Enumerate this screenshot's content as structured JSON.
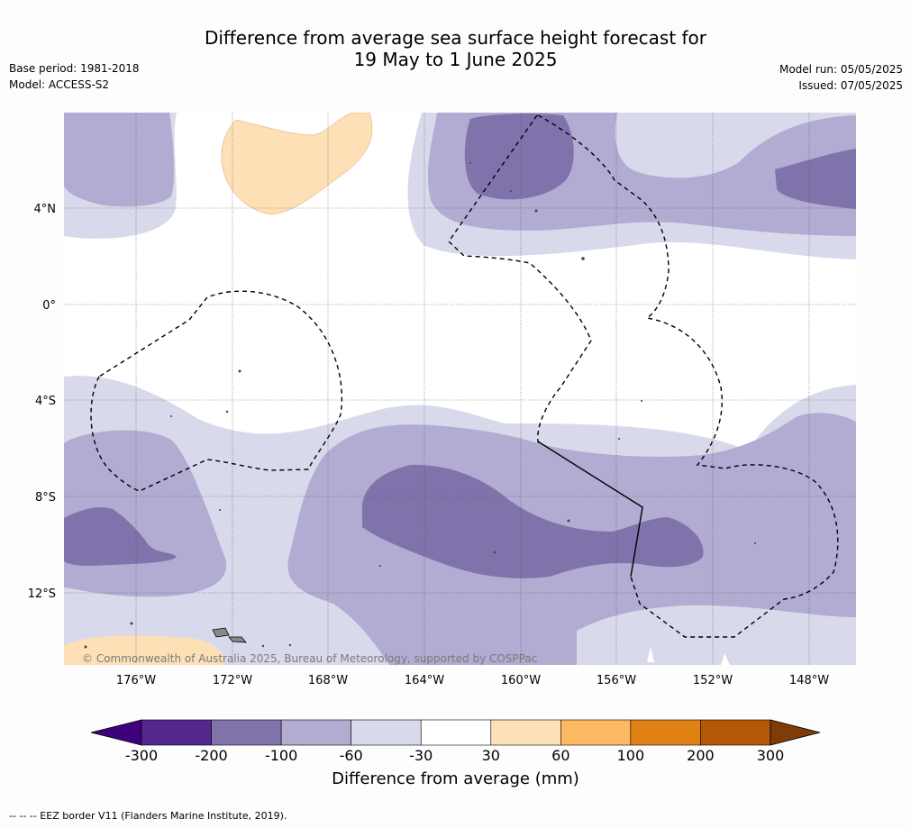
{
  "title_line1": "Difference from average sea surface height forecast for",
  "title_line2": "19 May to 1 June 2025",
  "base_period": "Base period: 1981-2018",
  "model": "Model: ACCESS-S2",
  "model_run": "Model run: 05/05/2025",
  "issued": "Issued: 07/05/2025",
  "copyright": "© Commonwealth of Australia 2025, Bureau of Meteorology, supported by COSPPac",
  "footer_note": "--  --  -- EEZ border V11 (Flanders Marine Institute, 2019).",
  "lat_labels": [
    "4°N",
    "0°",
    "4°S",
    "8°S",
    "12°S"
  ],
  "lon_labels": [
    "176°W",
    "172°W",
    "168°W",
    "164°W",
    "160°W",
    "156°W",
    "152°W",
    "148°W"
  ],
  "colorbar": {
    "title": "Difference from average (mm)",
    "ticks": [
      "-300",
      "-200",
      "-100",
      "-60",
      "-30",
      "30",
      "60",
      "100",
      "200",
      "300"
    ],
    "colors": [
      "#3f007d",
      "#54278f",
      "#8073ac",
      "#b2abd2",
      "#d8daeb",
      "#ffffff",
      "#fee0b6",
      "#fdb863",
      "#e08214",
      "#b35806",
      "#7f3b08"
    ]
  }
}
